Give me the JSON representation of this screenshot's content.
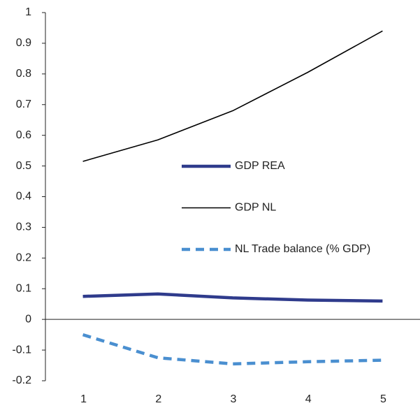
{
  "chart_data": {
    "type": "line",
    "categories": [
      "1",
      "2",
      "3",
      "4",
      "5"
    ],
    "series": [
      {
        "name": "GDP REA",
        "color": "#2f3b8c",
        "values": [
          0.075,
          0.083,
          0.07,
          0.063,
          0.06
        ]
      },
      {
        "name": "GDP NL",
        "color": "#000000",
        "values": [
          0.515,
          0.585,
          0.68,
          0.805,
          0.94
        ]
      },
      {
        "name": "NL Trade balance (% GDP)",
        "color": "#4a8fd0",
        "values": [
          -0.05,
          -0.125,
          -0.145,
          -0.138,
          -0.133
        ]
      }
    ],
    "ylim": [
      -0.2,
      1
    ],
    "yticks": [
      -0.2,
      -0.1,
      0,
      0.1,
      0.2,
      0.3,
      0.4,
      0.5,
      0.6,
      0.7,
      0.8,
      0.9,
      1
    ],
    "grid": false
  }
}
